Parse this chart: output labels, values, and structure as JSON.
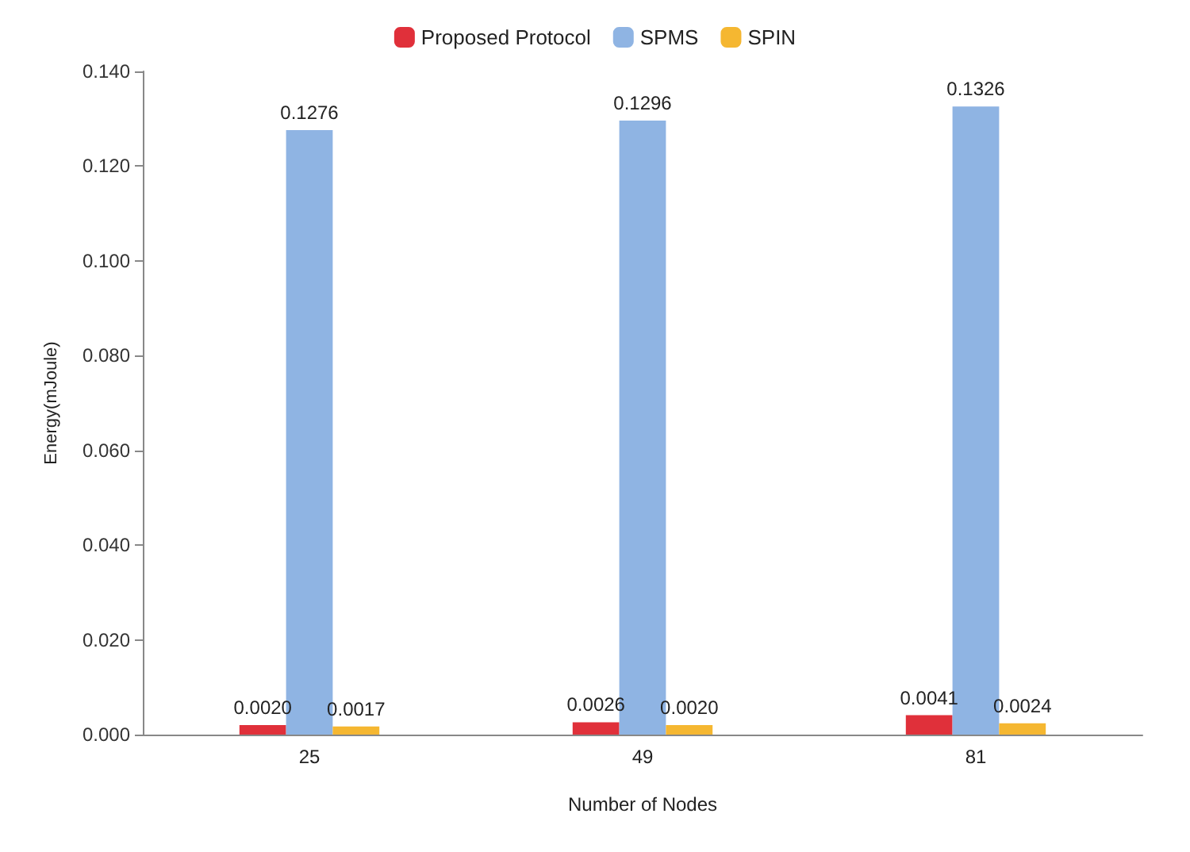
{
  "chart_data": {
    "type": "bar",
    "xlabel": "Number of Nodes",
    "ylabel": "Energy(mJoule)",
    "categories": [
      "25",
      "49",
      "81"
    ],
    "series": [
      {
        "name": "Proposed Protocol",
        "color": "#e0303a",
        "values": [
          0.002,
          0.0026,
          0.0041
        ],
        "value_labels": [
          "0.0020",
          "0.0026",
          "0.0041"
        ]
      },
      {
        "name": "SPMS",
        "color": "#8fb4e3",
        "values": [
          0.1276,
          0.1296,
          0.1326
        ],
        "value_labels": [
          "0.1276",
          "0.1296",
          "0.1326"
        ]
      },
      {
        "name": "SPIN",
        "color": "#f5b731",
        "values": [
          0.0017,
          0.002,
          0.0024
        ],
        "value_labels": [
          "0.0017",
          "0.0020",
          "0.0024"
        ]
      }
    ],
    "ylim": [
      0,
      0.14
    ],
    "yticks": [
      {
        "value": 0,
        "label": "0.000"
      },
      {
        "value": 0.02,
        "label": "0.020"
      },
      {
        "value": 0.04,
        "label": "0.040"
      },
      {
        "value": 0.06,
        "label": "0.060"
      },
      {
        "value": 0.08,
        "label": "0.080"
      },
      {
        "value": 0.1,
        "label": "0.100"
      },
      {
        "value": 0.12,
        "label": "0.120"
      },
      {
        "value": 0.14,
        "label": "0.140"
      }
    ],
    "grid": false,
    "legend": "top"
  }
}
